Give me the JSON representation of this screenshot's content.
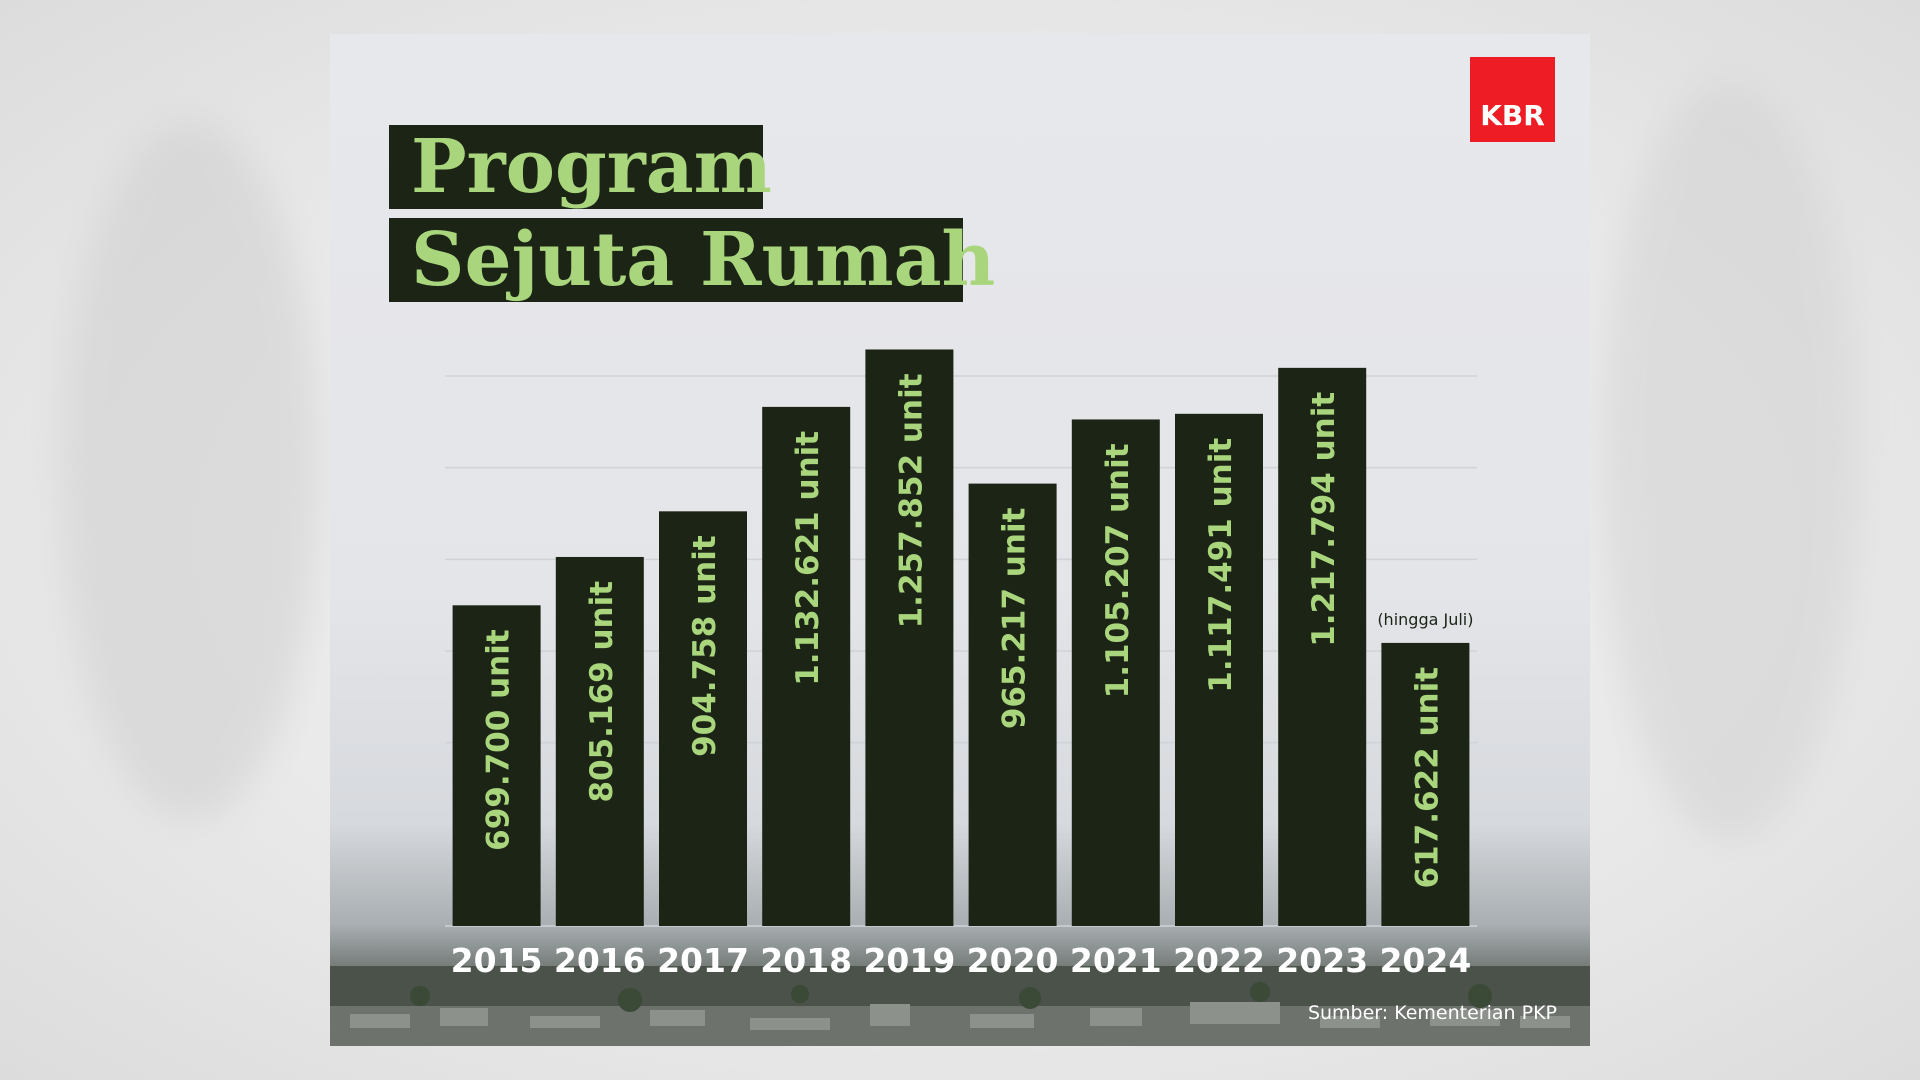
{
  "logo": {
    "text": "KBR"
  },
  "source": "Sumber: Kementerian PKP",
  "chart_data": {
    "type": "bar",
    "title_line1": "Program",
    "title_line2": "Sejuta Rumah",
    "categories": [
      "2015",
      "2016",
      "2017",
      "2018",
      "2019",
      "2020",
      "2021",
      "2022",
      "2023",
      "2024"
    ],
    "values": [
      699700,
      805169,
      904758,
      1132621,
      1257852,
      965217,
      1105207,
      1117491,
      1217794,
      617622
    ],
    "value_labels": [
      "699.700 unit",
      "805.169 unit",
      "904.758 unit",
      "1.132.621 unit",
      "1.257.852 unit",
      "965.217 unit",
      "1.105.207 unit",
      "1.117.491 unit",
      "1.217.794 unit",
      "617.622 unit"
    ],
    "annotations": [
      {
        "category": "2024",
        "text": "(hingga Juli)"
      }
    ],
    "ylim": [
      0,
      1200000
    ],
    "grid": true,
    "bar_color": "#1c2416",
    "label_color": "#a9d67d",
    "title_color": "#a9d67d",
    "axis_label_color": "#ffffff"
  }
}
